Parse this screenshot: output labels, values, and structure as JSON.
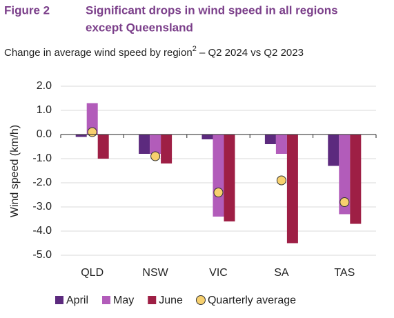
{
  "chart_data": {
    "type": "bar",
    "figure_label": "Figure 2",
    "title": [
      "Significant drops in wind speed in all regions",
      "except Queensland"
    ],
    "subtitle": [
      "Change in average wind speed by region",
      "2",
      " – Q2 2024 vs Q2 2023"
    ],
    "y_label": "Wind speed (km/h)",
    "categories": [
      "QLD",
      "NSW",
      "VIC",
      "SA",
      "TAS"
    ],
    "series": [
      {
        "name": "April",
        "color": "#5c2a7e",
        "values": [
          -0.1,
          -0.8,
          -0.2,
          -0.4,
          -1.3
        ]
      },
      {
        "name": "May",
        "color": "#b25cba",
        "values": [
          1.3,
          -0.8,
          -3.4,
          -0.8,
          -3.3
        ]
      },
      {
        "name": "June",
        "color": "#9e1f45",
        "values": [
          -1.0,
          -1.2,
          -3.6,
          -4.5,
          -3.7
        ]
      },
      {
        "name": "Quarterly average",
        "color": "#f7d06e",
        "type": "dot",
        "values": [
          0.1,
          -0.9,
          -2.4,
          -1.9,
          -2.8
        ]
      }
    ],
    "ylim": [
      -5,
      2
    ],
    "yticks": [
      {
        "value": 2,
        "label": "2.0"
      },
      {
        "value": 1,
        "label": "1.0"
      },
      {
        "value": 0,
        "label": "0.0"
      },
      {
        "value": -1,
        "label": "-1.0"
      },
      {
        "value": -2,
        "label": "-2.0"
      },
      {
        "value": -3,
        "label": "-3.0"
      },
      {
        "value": -4,
        "label": "-4.0"
      },
      {
        "value": -5,
        "label": "-5.0"
      }
    ],
    "grid": true
  }
}
